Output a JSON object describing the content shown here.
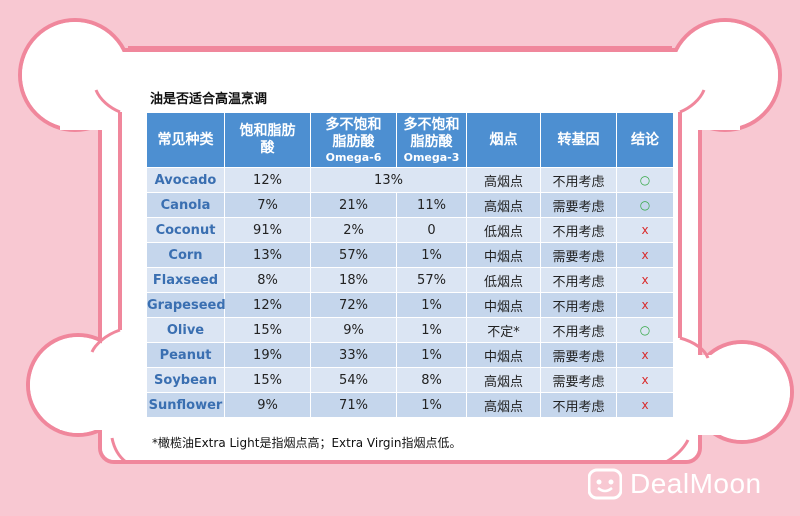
{
  "title": "油是否适合高温烹调",
  "headers": [
    {
      "main": "常见种类",
      "sub": ""
    },
    {
      "main": "饱和脂肪酸",
      "sub": ""
    },
    {
      "main": "多不饱和脂肪酸",
      "sub": "Omega-6"
    },
    {
      "main": "多不饱和脂肪酸",
      "sub": "Omega-3"
    },
    {
      "main": "烟点",
      "sub": ""
    },
    {
      "main": "转基因",
      "sub": ""
    },
    {
      "main": "结论",
      "sub": ""
    }
  ],
  "rows": [
    {
      "oil": "Avocado",
      "saturated": "12%",
      "omega6": "13%",
      "omega3": "",
      "smoke_point": "高烟点",
      "gmo": "不用考虑",
      "verdict": "○",
      "verdict_type": "yes",
      "merged_poly": true
    },
    {
      "oil": "Canola",
      "saturated": "7%",
      "omega6": "21%",
      "omega3": "11%",
      "smoke_point": "高烟点",
      "gmo": "需要考虑",
      "verdict": "○",
      "verdict_type": "yes"
    },
    {
      "oil": "Coconut",
      "saturated": "91%",
      "omega6": "2%",
      "omega3": "0",
      "smoke_point": "低烟点",
      "gmo": "不用考虑",
      "verdict": "x",
      "verdict_type": "no"
    },
    {
      "oil": "Corn",
      "saturated": "13%",
      "omega6": "57%",
      "omega3": "1%",
      "smoke_point": "中烟点",
      "gmo": "需要考虑",
      "verdict": "x",
      "verdict_type": "no"
    },
    {
      "oil": "Flaxseed",
      "saturated": "8%",
      "omega6": "18%",
      "omega3": "57%",
      "smoke_point": "低烟点",
      "gmo": "不用考虑",
      "verdict": "x",
      "verdict_type": "no"
    },
    {
      "oil": "Grapeseed",
      "saturated": "12%",
      "omega6": "72%",
      "omega3": "1%",
      "smoke_point": "中烟点",
      "gmo": "不用考虑",
      "verdict": "x",
      "verdict_type": "no"
    },
    {
      "oil": "Olive",
      "saturated": "15%",
      "omega6": "9%",
      "omega3": "1%",
      "smoke_point": "不定*",
      "gmo": "不用考虑",
      "verdict": "○",
      "verdict_type": "yes"
    },
    {
      "oil": "Peanut",
      "saturated": "19%",
      "omega6": "33%",
      "omega3": "1%",
      "smoke_point": "中烟点",
      "gmo": "需要考虑",
      "verdict": "x",
      "verdict_type": "no"
    },
    {
      "oil": "Soybean",
      "saturated": "15%",
      "omega6": "54%",
      "omega3": "8%",
      "smoke_point": "高烟点",
      "gmo": "需要考虑",
      "verdict": "x",
      "verdict_type": "no"
    },
    {
      "oil": "Sunflower",
      "saturated": "9%",
      "omega6": "71%",
      "omega3": "1%",
      "smoke_point": "高烟点",
      "gmo": "不用考虑",
      "verdict": "x",
      "verdict_type": "no"
    }
  ],
  "footnote": "*橄榄油Extra Light是指烟点高；Extra Virgin指烟点低。",
  "logo": {
    "text": "DealMoon",
    "icon": "dealmoon-logo-icon"
  },
  "colors": {
    "background": "#f8c8d2",
    "frame_border": "#f0879c",
    "header_bg": "#4d8fd1",
    "row_light": "#dbe5f3",
    "row_dark": "#c5d6ec",
    "oil_name": "#3a6fb1",
    "yes": "#35a845",
    "no": "#d92a2a"
  }
}
